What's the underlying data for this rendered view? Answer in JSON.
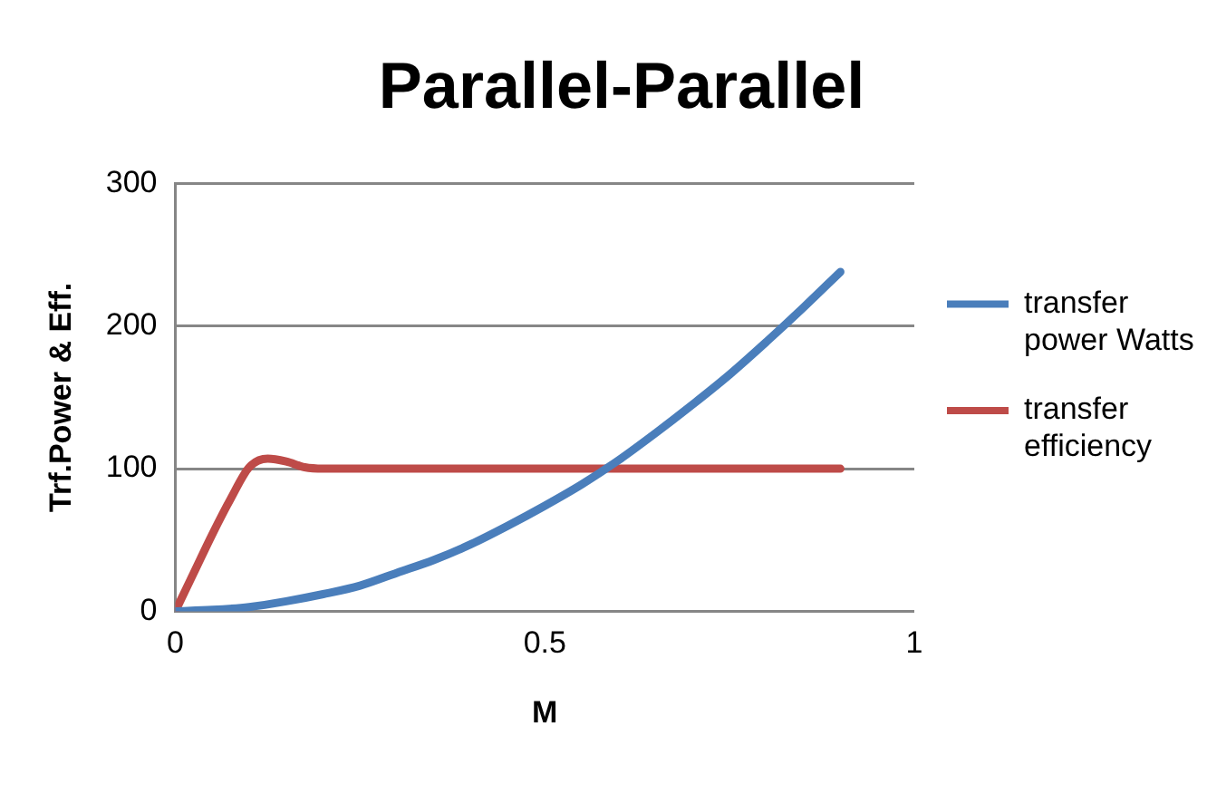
{
  "chart_data": {
    "type": "line",
    "title": "Parallel-Parallel",
    "xlabel": "M",
    "ylabel": "Trf.Power & Eff.",
    "xlim": [
      0,
      1
    ],
    "xticks": [
      0,
      0.5,
      1
    ],
    "ylim": [
      0,
      300
    ],
    "yticks": [
      0,
      100,
      200,
      300
    ],
    "grid": "y",
    "legend": "right",
    "marker": "none",
    "line_style": "solid",
    "series": [
      {
        "name": "transfer power Watts",
        "color": "#4a7ebb",
        "x": [
          0,
          0.05,
          0.1,
          0.15,
          0.2,
          0.25,
          0.3,
          0.35,
          0.4,
          0.45,
          0.5,
          0.55,
          0.6,
          0.65,
          0.7,
          0.75,
          0.8,
          0.85,
          0.9
        ],
        "values": [
          0,
          1,
          3,
          7,
          12,
          18,
          27,
          36,
          47,
          60,
          74,
          89,
          106,
          125,
          145,
          166,
          189,
          213,
          238
        ]
      },
      {
        "name": "transfer efficiency",
        "color": "#be4b48",
        "x": [
          0,
          0.025,
          0.05,
          0.075,
          0.1,
          0.125,
          0.15,
          0.175,
          0.2,
          0.3,
          0.4,
          0.5,
          0.6,
          0.7,
          0.8,
          0.9
        ],
        "values": [
          0,
          27,
          54,
          79,
          101,
          107,
          105,
          101,
          100,
          100,
          100,
          100,
          100,
          100,
          100,
          100
        ]
      }
    ]
  }
}
